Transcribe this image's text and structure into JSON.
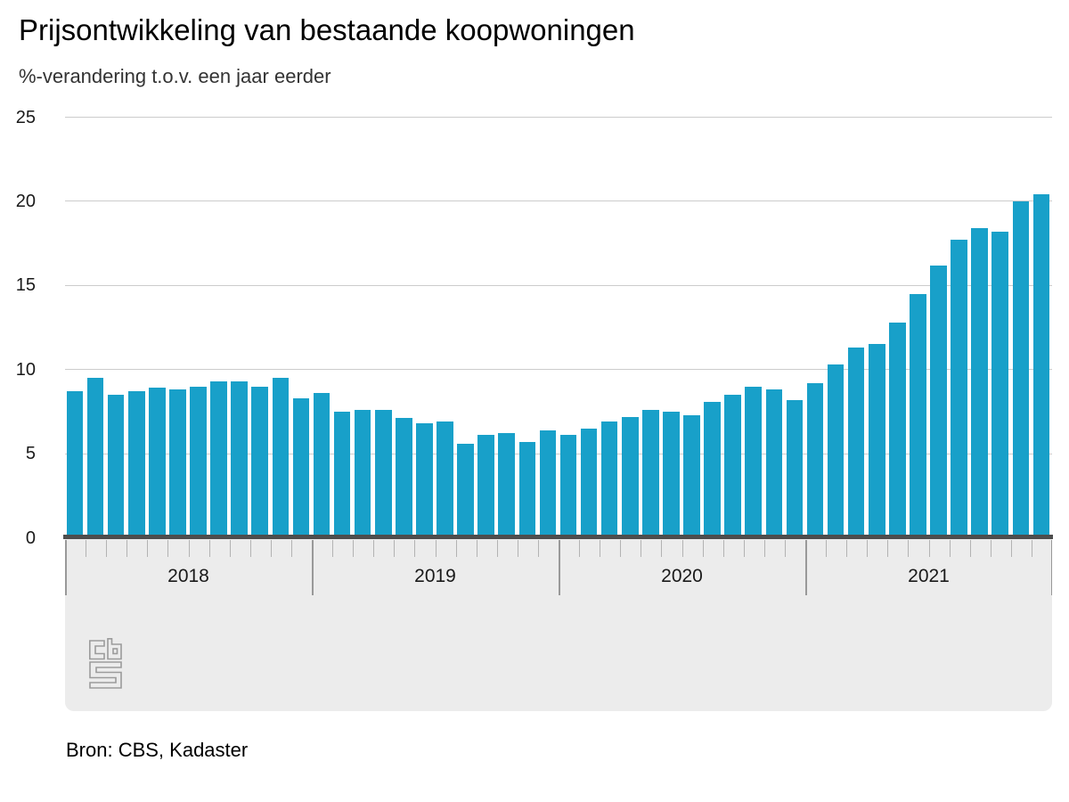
{
  "header": {
    "title": "Prijsontwikkeling van bestaande koopwoningen",
    "subtitle": "%-verandering t.o.v. een jaar eerder"
  },
  "source": {
    "label": "Bron: CBS, Kadaster"
  },
  "logo": {
    "name": "cbs-logo"
  },
  "colors": {
    "bar": "#18A0C9",
    "axis_line": "#4D4D4D",
    "gridline": "#CCCCCC",
    "panel": "#ECECEC",
    "tick": "#B3B3B3",
    "divider": "#999999",
    "logo": "#9B9B9B",
    "title_text": "#000000",
    "subtitle_text": "#333333"
  },
  "chart_data": {
    "type": "bar",
    "title": "Prijsontwikkeling van bestaande koopwoningen",
    "ylabel": "%-verandering t.o.v. een jaar eerder",
    "xlabel": "",
    "legend": "none",
    "grid": "horizontal",
    "ylim": [
      0,
      25
    ],
    "yticks": [
      0,
      5,
      10,
      15,
      20,
      25
    ],
    "year_labels": [
      "2018",
      "2019",
      "2020",
      "2021"
    ],
    "x": [
      "2018-01",
      "2018-02",
      "2018-03",
      "2018-04",
      "2018-05",
      "2018-06",
      "2018-07",
      "2018-08",
      "2018-09",
      "2018-10",
      "2018-11",
      "2018-12",
      "2019-01",
      "2019-02",
      "2019-03",
      "2019-04",
      "2019-05",
      "2019-06",
      "2019-07",
      "2019-08",
      "2019-09",
      "2019-10",
      "2019-11",
      "2019-12",
      "2020-01",
      "2020-02",
      "2020-03",
      "2020-04",
      "2020-05",
      "2020-06",
      "2020-07",
      "2020-08",
      "2020-09",
      "2020-10",
      "2020-11",
      "2020-12",
      "2021-01",
      "2021-02",
      "2021-03",
      "2021-04",
      "2021-05",
      "2021-06",
      "2021-07",
      "2021-08",
      "2021-09",
      "2021-10",
      "2021-11",
      "2021-12"
    ],
    "values": [
      8.7,
      9.5,
      8.5,
      8.7,
      8.9,
      8.8,
      9.0,
      9.3,
      9.3,
      9.0,
      9.5,
      8.3,
      8.6,
      7.5,
      7.6,
      7.6,
      7.1,
      6.8,
      6.9,
      5.6,
      6.1,
      6.2,
      5.7,
      6.4,
      6.1,
      6.5,
      6.9,
      7.2,
      7.6,
      7.5,
      7.3,
      8.1,
      8.5,
      9.0,
      8.8,
      8.2,
      9.2,
      10.3,
      11.3,
      11.5,
      12.8,
      14.5,
      16.2,
      17.7,
      18.4,
      18.2,
      20.0,
      20.4
    ]
  }
}
